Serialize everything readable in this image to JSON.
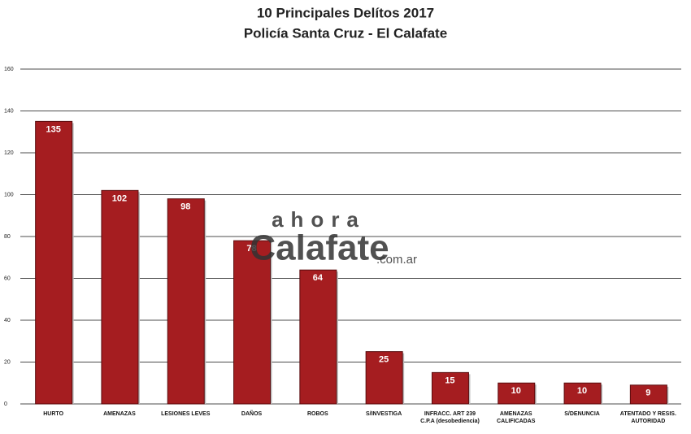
{
  "chart_data": {
    "type": "bar",
    "title": "10 Principales Delítos 2017",
    "subtitle": "Policía Santa Cruz - El Calafate",
    "categories": [
      "HURTO",
      "AMENAZAS",
      "LESIONES LEVES",
      "DAÑOS",
      "ROBOS",
      "S/INVESTIGA",
      "INFRACC. ART 239 C.P.A (desobediencia)",
      "AMENAZAS CALIFICADAS",
      "S/DENUNCIA",
      "ATENTADO Y RESIS. AUTORIDAD"
    ],
    "values": [
      135,
      102,
      98,
      78,
      64,
      25,
      15,
      10,
      10,
      9
    ],
    "color": "#a51d20",
    "ylim": [
      0,
      160
    ],
    "yticks": [
      0,
      20,
      40,
      60,
      80,
      100,
      120,
      140,
      160
    ],
    "grid": true,
    "watermark": {
      "top": "ahora",
      "main": "Calafate",
      "suffix": ".com.ar"
    }
  }
}
